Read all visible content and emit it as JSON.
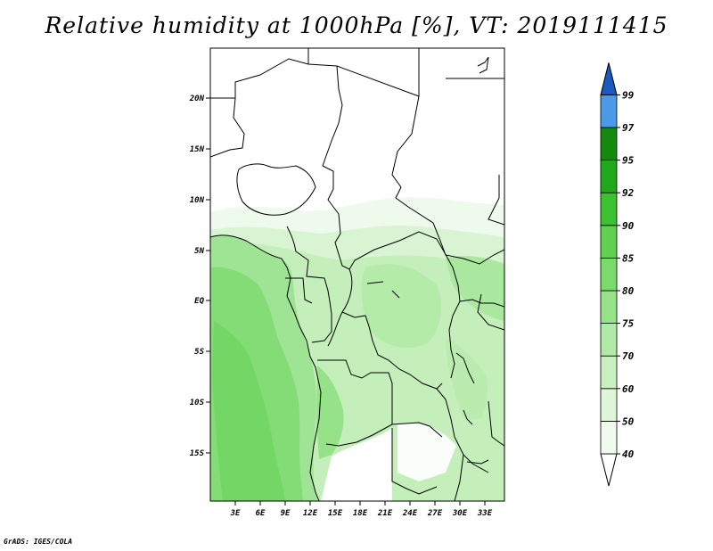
{
  "title": "Relative humidity at 1000hPa [%], VT: 2019111415",
  "footer": "GrADS: IGES/COLA",
  "map": {
    "lat_labels": [
      "20N",
      "15N",
      "10N",
      "5N",
      "EQ",
      "5S",
      "10S",
      "15S"
    ],
    "lon_labels": [
      "3E",
      "6E",
      "9E",
      "12E",
      "15E",
      "18E",
      "21E",
      "24E",
      "27E",
      "30E",
      "33E"
    ]
  },
  "colorbar": {
    "labels": [
      "40",
      "50",
      "60",
      "70",
      "75",
      "80",
      "85",
      "90",
      "92",
      "95",
      "97",
      "99"
    ],
    "colors": [
      "#ffffff",
      "#f0fbee",
      "#dff6d9",
      "#c8f0c0",
      "#b1eaa6",
      "#96e38a",
      "#7adb6c",
      "#5fd14e",
      "#3cc22e",
      "#20a71a",
      "#138a0e",
      "#4a9ae8",
      "#2a72d8",
      "#1b58c0"
    ]
  }
}
